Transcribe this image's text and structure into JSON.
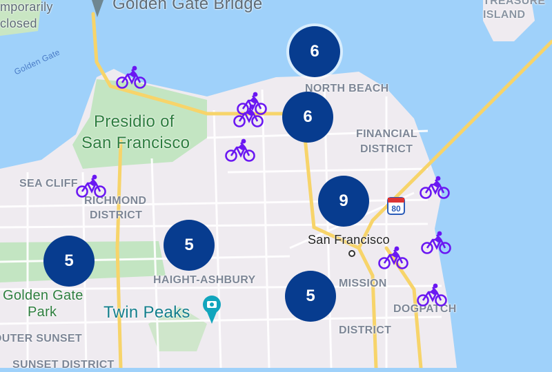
{
  "colors": {
    "water": "#9fd1fa",
    "land": "#efebf0",
    "park": "#c3e5c2",
    "road": "#ffffff",
    "highway": "#f7d46a",
    "cluster": "#073c8f",
    "bike": "#6a17f2",
    "poi": "#12a5bd"
  },
  "labels": {
    "temporarily": "mporarily",
    "closed": "closed",
    "golden_gate_bridge": "Golden Gate Bridge",
    "golden_gate": "Golden Gate",
    "treasure_island": "TREASURE\nISLAND",
    "north_beach": "NORTH BEACH",
    "presidio1": "Presidio of",
    "presidio2": "San Francisco",
    "financial1": "FINANCIAL",
    "financial2": "DISTRICT",
    "sea_cliff": "SEA CLIFF",
    "richmond1": "RICHMOND",
    "richmond2": "DISTRICT",
    "san_francisco": "San Francisco",
    "haight": "HAIGHT-ASHBURY",
    "golden_gate_park1": "Golden Gate",
    "golden_gate_park2": "Park",
    "twin_peaks": "Twin Peaks",
    "mission1": "MISSION",
    "mission2": "DISTRICT",
    "dogpatch": "DOGPATCH",
    "outer_sunset": "OUTER SUNSET",
    "sunset_district": "SUNSET DISTRICT",
    "i80": "80"
  },
  "clusters": [
    {
      "count": "6"
    },
    {
      "count": "6"
    },
    {
      "count": "9"
    },
    {
      "count": "5"
    },
    {
      "count": "5"
    },
    {
      "count": "5"
    }
  ],
  "bike_icon": "bicycle-icon"
}
